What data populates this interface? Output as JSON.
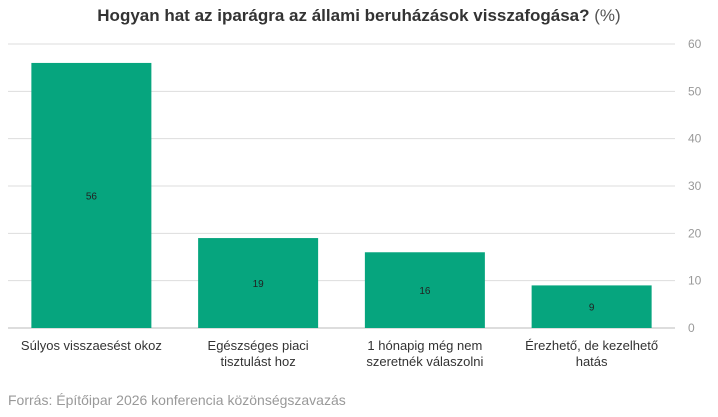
{
  "title": {
    "main": "Hogyan hat az iparágra az állami beruházások visszafogása?",
    "unit": "(%)"
  },
  "source": "Forrás: Építőipar 2026 konferencia közönségszavazás",
  "colors": {
    "bar": "#06a57e",
    "grid": "#dddddd",
    "axis_text": "#999999",
    "label_text": "#333333"
  },
  "chart_data": {
    "type": "bar",
    "categories": [
      "Súlyos visszaesést okoz",
      "Egészséges piaci tisztulást hoz",
      "1 hónapig még nem szeretnék válaszolni",
      "Érezhető, de kezelhető hatás"
    ],
    "values": [
      56,
      19,
      16,
      9
    ],
    "data_labels": [
      "56",
      "19",
      "16",
      "9"
    ],
    "ylim": [
      0,
      60
    ],
    "yticks": [
      0,
      10,
      20,
      30,
      40,
      50,
      60
    ],
    "y_axis_side": "right",
    "grid": true,
    "legend": false
  }
}
